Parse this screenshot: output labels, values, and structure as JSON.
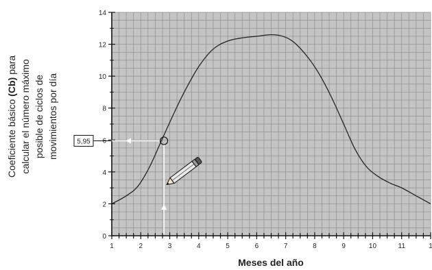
{
  "chart_data": {
    "type": "line",
    "xlabel": "Meses del año",
    "ylabel_lines": [
      "Coeficiente básico",
      "calcular el número máximo",
      "posible de ciclos de",
      "movimientos por día"
    ],
    "ylabel_bold": "(Cb)",
    "ylabel_bold_suffix": " para",
    "xlim": [
      1,
      12
    ],
    "ylim": [
      0,
      14
    ],
    "x_ticks": [
      "1",
      "2",
      "3",
      "4",
      "5",
      "6",
      "7",
      "8",
      "9",
      "10",
      "11",
      "1"
    ],
    "y_ticks": [
      "0",
      "2",
      "4",
      "6",
      "8",
      "10",
      "12",
      "14"
    ],
    "grid": true,
    "series": [
      {
        "x": [
          1.0,
          1.5,
          1.9,
          2.3,
          2.7,
          3.1,
          3.5,
          4.0,
          4.5,
          5.0,
          5.5,
          6.0,
          6.5,
          6.9,
          7.3,
          7.8,
          8.2,
          8.6,
          9.0,
          9.4,
          9.8,
          10.2,
          10.6,
          11.0,
          11.5,
          12.0
        ],
        "y": [
          2.0,
          2.5,
          3.1,
          4.3,
          5.9,
          7.5,
          9.0,
          10.6,
          11.7,
          12.2,
          12.4,
          12.5,
          12.6,
          12.5,
          12.1,
          11.1,
          10.0,
          8.6,
          7.0,
          5.4,
          4.3,
          3.7,
          3.3,
          3.0,
          2.5,
          2.0
        ]
      }
    ],
    "annotation": {
      "x": 2.8,
      "y": 5.95,
      "label": "5,95"
    }
  }
}
